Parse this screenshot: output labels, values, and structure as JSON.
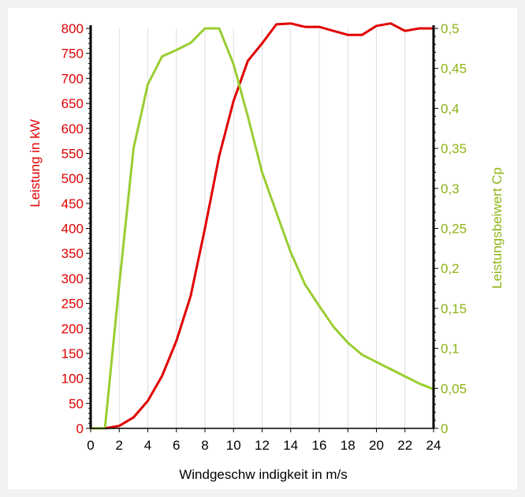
{
  "chart_data": {
    "type": "line",
    "xlabel": "Windgeschw indigkeit in m/s",
    "ylabel_left": "Leistung in kW",
    "ylabel_right": "Leistungsbeiwert Cp",
    "xlim": [
      0,
      24
    ],
    "ylim_left": [
      0,
      800
    ],
    "ylim_right": [
      0,
      0.5
    ],
    "grid": "vertical",
    "x_ticks": [
      "0",
      "2",
      "4",
      "6",
      "8",
      "10",
      "12",
      "14",
      "16",
      "18",
      "20",
      "22",
      "24"
    ],
    "y_left_ticks": [
      "0",
      "50",
      "100",
      "150",
      "200",
      "250",
      "300",
      "350",
      "400",
      "450",
      "500",
      "550",
      "600",
      "650",
      "700",
      "750",
      "800"
    ],
    "y_right_ticks": [
      "0",
      "0,05",
      "0,1",
      "0,15",
      "0,2",
      "0,25",
      "0,3",
      "0,35",
      "0,4",
      "0,45",
      "0,5"
    ],
    "colors": {
      "power": "#e00000",
      "cp": "#9acd32",
      "axis": "#000000",
      "grid": "#dddddd"
    },
    "series": [
      {
        "axis": "left",
        "color": "#e00000",
        "x": [
          0,
          1,
          2,
          3,
          4,
          5,
          6,
          7,
          8,
          9,
          10,
          11,
          12,
          13,
          14,
          15,
          16,
          17,
          18,
          19,
          20,
          21,
          22,
          23,
          24
        ],
        "values": [
          0,
          0,
          5,
          22,
          55,
          105,
          175,
          265,
          400,
          545,
          655,
          735,
          770,
          808,
          810,
          803,
          803,
          795,
          787,
          787,
          805,
          810,
          795,
          800,
          800
        ]
      },
      {
        "axis": "right",
        "color": "#9acd32",
        "x": [
          0,
          1,
          2,
          3,
          4,
          5,
          6,
          7,
          8,
          9,
          10,
          11,
          12,
          13,
          14,
          15,
          16,
          17,
          18,
          19,
          20,
          21,
          22,
          23,
          24
        ],
        "values": [
          0,
          0,
          0.18,
          0.35,
          0.43,
          0.465,
          0.473,
          0.482,
          0.5,
          0.5,
          0.455,
          0.39,
          0.32,
          0.27,
          0.22,
          0.18,
          0.153,
          0.127,
          0.107,
          0.092,
          0.083,
          0.074,
          0.065,
          0.056,
          0.049
        ]
      }
    ]
  }
}
